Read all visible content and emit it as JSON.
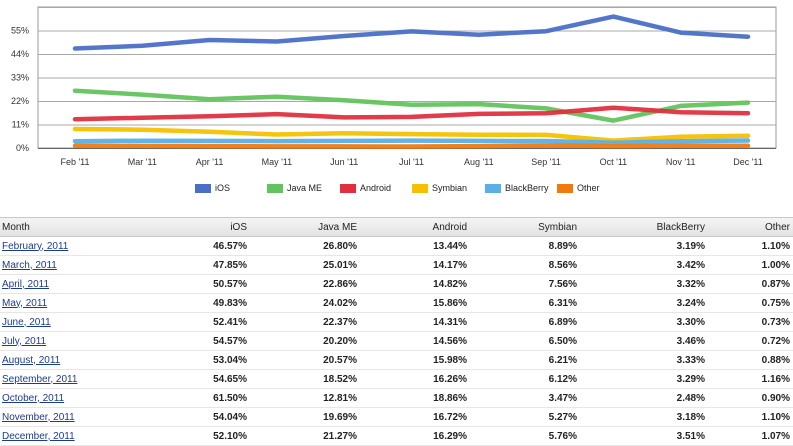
{
  "chart_data": {
    "type": "line",
    "categories": [
      "Feb '11",
      "Mar '11",
      "Apr '11",
      "May '11",
      "Jun '11",
      "Jul '11",
      "Aug '11",
      "Sep '11",
      "Oct '11",
      "Nov '11",
      "Dec '11"
    ],
    "yticks": [
      "0%",
      "11%",
      "22%",
      "33%",
      "44%",
      "55%"
    ],
    "ytick_values": [
      0,
      11,
      22,
      33,
      44,
      55
    ],
    "ylim": [
      0,
      66
    ],
    "grid": true,
    "legend_position": "bottom",
    "series": [
      {
        "name": "iOS",
        "color": "#4a6fc8",
        "values": [
          46.57,
          47.85,
          50.57,
          49.83,
          52.41,
          54.57,
          53.04,
          54.65,
          61.5,
          54.04,
          52.1
        ]
      },
      {
        "name": "Java ME",
        "color": "#63c35e",
        "values": [
          26.8,
          25.01,
          22.86,
          24.02,
          22.37,
          20.2,
          20.57,
          18.52,
          12.81,
          19.69,
          21.27
        ]
      },
      {
        "name": "Android",
        "color": "#e0303f",
        "values": [
          13.44,
          14.17,
          14.82,
          15.86,
          14.31,
          14.56,
          15.98,
          16.26,
          18.86,
          16.72,
          16.29
        ]
      },
      {
        "name": "Symbian",
        "color": "#f5c000",
        "values": [
          8.89,
          8.56,
          7.56,
          6.31,
          6.89,
          6.5,
          6.21,
          6.12,
          3.47,
          5.27,
          5.76
        ]
      },
      {
        "name": "BlackBerry",
        "color": "#5aafe6",
        "values": [
          3.19,
          3.42,
          3.32,
          3.24,
          3.3,
          3.46,
          3.33,
          3.29,
          2.48,
          3.18,
          3.51
        ]
      },
      {
        "name": "Other",
        "color": "#f07a10",
        "values": [
          1.1,
          1.0,
          0.87,
          0.75,
          0.73,
          0.72,
          0.88,
          1.16,
          0.9,
          1.1,
          1.07
        ]
      }
    ]
  },
  "table": {
    "headers": [
      "Month",
      "iOS",
      "Java ME",
      "Android",
      "Symbian",
      "BlackBerry",
      "Other"
    ],
    "rows": [
      [
        "February, 2011",
        "46.57%",
        "26.80%",
        "13.44%",
        "8.89%",
        "3.19%",
        "1.10%"
      ],
      [
        "March, 2011",
        "47.85%",
        "25.01%",
        "14.17%",
        "8.56%",
        "3.42%",
        "1.00%"
      ],
      [
        "April, 2011",
        "50.57%",
        "22.86%",
        "14.82%",
        "7.56%",
        "3.32%",
        "0.87%"
      ],
      [
        "May, 2011",
        "49.83%",
        "24.02%",
        "15.86%",
        "6.31%",
        "3.24%",
        "0.75%"
      ],
      [
        "June, 2011",
        "52.41%",
        "22.37%",
        "14.31%",
        "6.89%",
        "3.30%",
        "0.73%"
      ],
      [
        "July, 2011",
        "54.57%",
        "20.20%",
        "14.56%",
        "6.50%",
        "3.46%",
        "0.72%"
      ],
      [
        "August, 2011",
        "53.04%",
        "20.57%",
        "15.98%",
        "6.21%",
        "3.33%",
        "0.88%"
      ],
      [
        "September, 2011",
        "54.65%",
        "18.52%",
        "16.26%",
        "6.12%",
        "3.29%",
        "1.16%"
      ],
      [
        "October, 2011",
        "61.50%",
        "12.81%",
        "18.86%",
        "3.47%",
        "2.48%",
        "0.90%"
      ],
      [
        "November, 2011",
        "54.04%",
        "19.69%",
        "16.72%",
        "5.27%",
        "3.18%",
        "1.10%"
      ],
      [
        "December, 2011",
        "52.10%",
        "21.27%",
        "16.29%",
        "5.76%",
        "3.51%",
        "1.07%"
      ]
    ]
  }
}
